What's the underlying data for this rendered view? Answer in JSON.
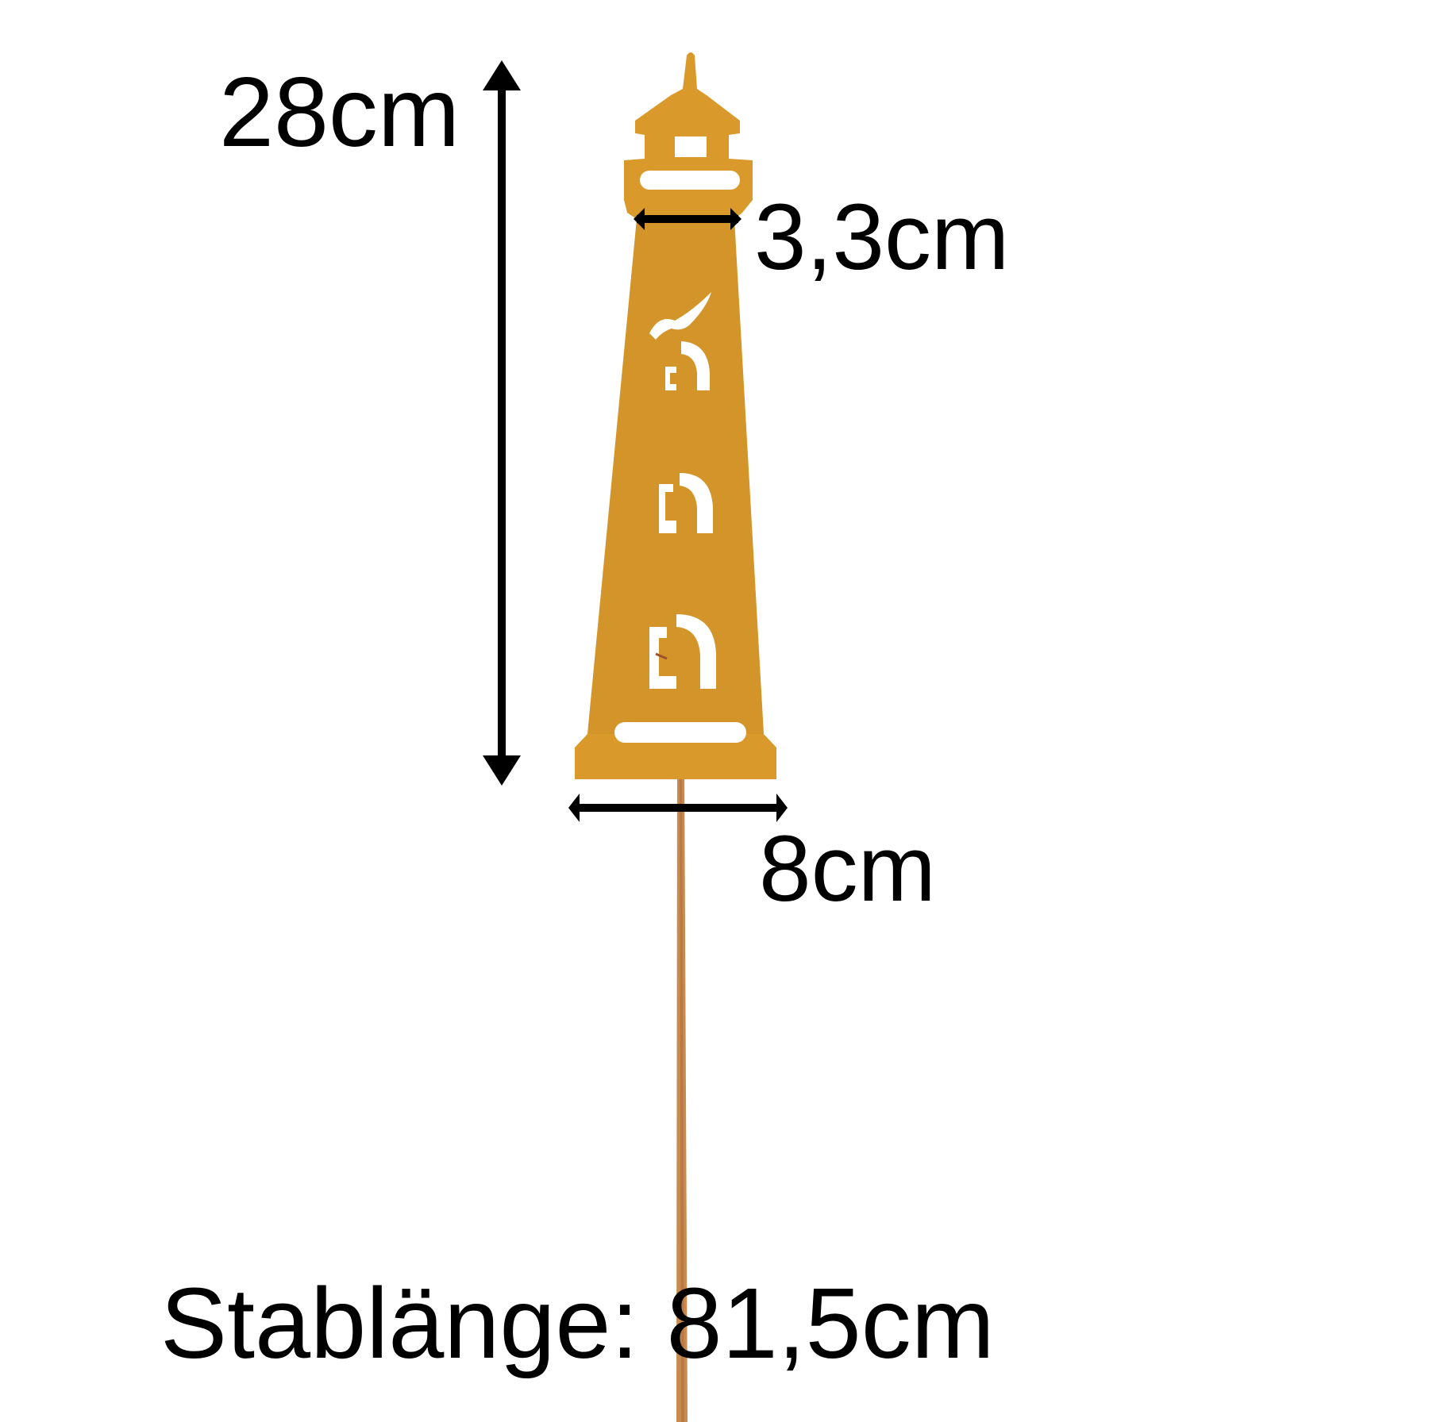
{
  "dimensions": {
    "height_label": "28cm",
    "top_width_label": "3,3cm",
    "bottom_width_label": "8cm",
    "rod_length_label": "Stablänge: 81,5cm"
  },
  "colors": {
    "background": "#ffffff",
    "rust_metal": "#d99a2b",
    "rust_shadow": "#c07f24",
    "rod": "#c98a4e",
    "dimension_lines": "#000000"
  },
  "icons": {
    "lighthouse": "lighthouse-garden-stake",
    "seagull": "seagull-icon",
    "arrow": "double-headed-arrow"
  }
}
